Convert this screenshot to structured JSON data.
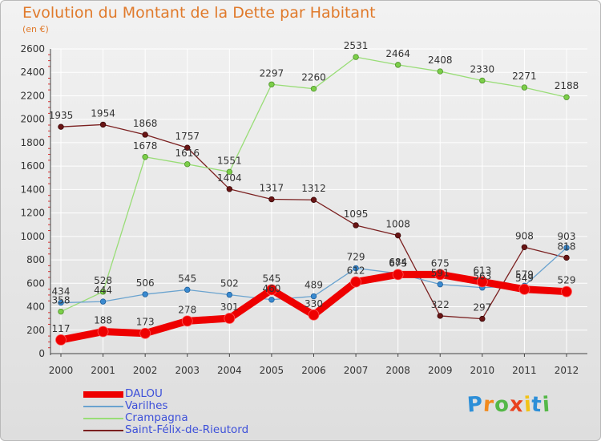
{
  "title": "Evolution du Montant de la Dette par Habitant",
  "subtitle": "(en €)",
  "brand": "Proxiti",
  "chart_data": {
    "type": "line",
    "x": [
      "2000",
      "2001",
      "2002",
      "2003",
      "2004",
      "2005",
      "2006",
      "2007",
      "2008",
      "2009",
      "2010",
      "2011",
      "2012"
    ],
    "ylim": [
      0,
      2600
    ],
    "yticks": [
      0,
      200,
      400,
      600,
      800,
      1000,
      1200,
      1400,
      1600,
      1800,
      2000,
      2200,
      2400,
      2600
    ],
    "grid": true,
    "legend_placement": "bottom-left",
    "series": [
      {
        "name": "DALOU",
        "color": "#ee0000",
        "values": [
          117,
          188,
          173,
          278,
          301,
          545,
          330,
          612,
          675,
          675,
          613,
          549,
          529
        ]
      },
      {
        "name": "Varilhes",
        "color": "#6aa3cf",
        "values": [
          434,
          444,
          506,
          545,
          502,
          460,
          489,
          729,
          684,
          591,
          563,
          579,
          903
        ]
      },
      {
        "name": "Crampagna",
        "color": "#99dd77",
        "values": [
          358,
          528,
          1678,
          1616,
          1551,
          2297,
          2260,
          2531,
          2464,
          2408,
          2330,
          2271,
          2188
        ]
      },
      {
        "name": "Saint-Félix-de-Rieutord",
        "color": "#7b2020",
        "values": [
          1935,
          1954,
          1868,
          1757,
          1404,
          1317,
          1312,
          1095,
          1008,
          322,
          297,
          908,
          818
        ]
      }
    ]
  }
}
